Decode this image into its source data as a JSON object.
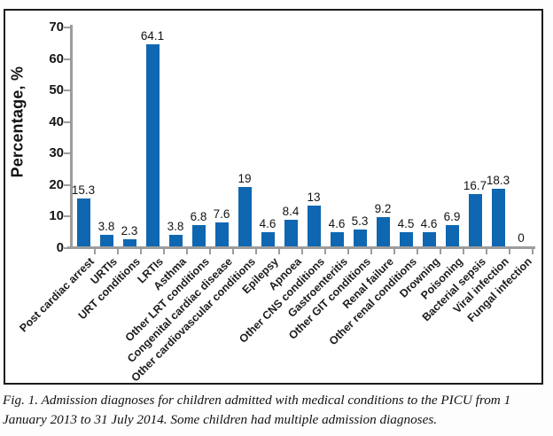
{
  "figure": {
    "caption": "Fig. 1. Admission diagnoses for children admitted with medical conditions to the PICU from 1 January 2013 to 31 July 2014. Some children had multiple admission diagnoses."
  },
  "chart_data": {
    "type": "bar",
    "title": "",
    "xlabel": "",
    "ylabel": "Percentage, %",
    "ylim": [
      0,
      70
    ],
    "yticks": [
      0,
      10,
      20,
      30,
      40,
      50,
      60,
      70
    ],
    "grid": false,
    "legend_position": "none",
    "bar_color": "#0f67b1",
    "axis_color": "#9c9c9c",
    "categories": [
      "Post cardiac arrest",
      "URTIs",
      "URT conditions",
      "LRTIs",
      "Asthma",
      "Other LRT conditions",
      "Congenital cardiac disease",
      "Other cardiovascular conditions",
      "Epilepsy",
      "Apnoea",
      "Other CNS conditions",
      "Gastroenteritis",
      "Other GIT conditions",
      "Renal failure",
      "Other renal conditions",
      "Drowning",
      "Poisoning",
      "Bacterial sepsis",
      "Viral infection",
      "Fungal infection"
    ],
    "values": [
      15.3,
      3.8,
      2.3,
      64.1,
      3.8,
      6.8,
      7.6,
      19,
      4.6,
      8.4,
      13,
      4.6,
      5.3,
      9.2,
      4.5,
      4.6,
      6.9,
      16.7,
      18.3,
      0
    ],
    "value_labels": [
      "15.3",
      "3.8",
      "2.3",
      "64.1",
      "3.8",
      "6.8",
      "7.6",
      "19",
      "4.6",
      "8.4",
      "13",
      "4.6",
      "5.3",
      "9.2",
      "4.5",
      "4.6",
      "6.9",
      "16.7",
      "18.3",
      "0"
    ]
  }
}
